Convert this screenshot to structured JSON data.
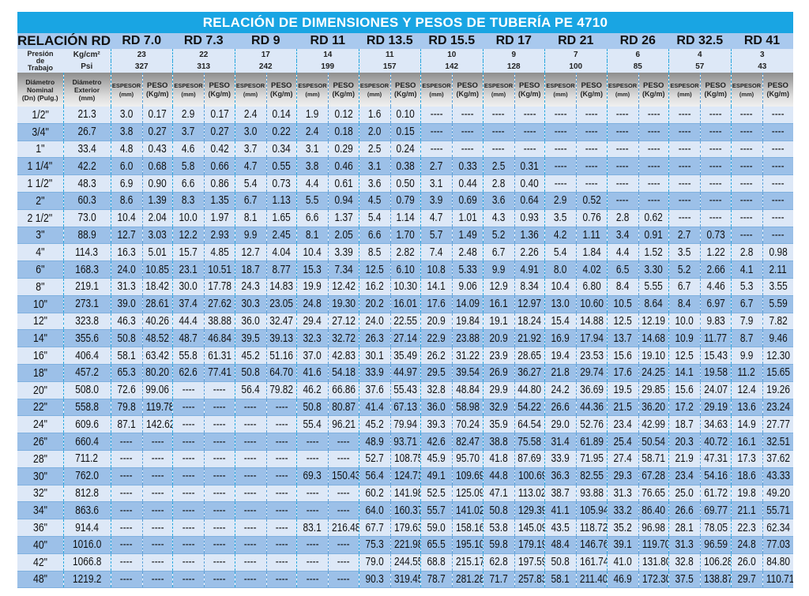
{
  "title": "RELACIÓN DE DIMENSIONES Y PESOS DE TUBERÍA PE 4710",
  "header": {
    "relacion_label": "RELACIÓN RD",
    "pressure_label": "Presión de Trabajo",
    "unit_kg": "Kg/cm²",
    "unit_psi": "Psi",
    "dn_label": "Diámetro Nominal (Dn) (Pulg.)",
    "od_label": "Diámetro Exterior (mm)",
    "espesor_label": "ESPESOR",
    "espesor_unit": "(mm)",
    "peso_label": "PESO",
    "peso_unit": "(Kg/m)"
  },
  "rd_groups": [
    {
      "name": "RD 7.0",
      "kg_cm2": "23",
      "psi": "327"
    },
    {
      "name": "RD 7.3",
      "kg_cm2": "22",
      "psi": "313"
    },
    {
      "name": "RD 9",
      "kg_cm2": "17",
      "psi": "242"
    },
    {
      "name": "RD 11",
      "kg_cm2": "14",
      "psi": "199"
    },
    {
      "name": "RD 13.5",
      "kg_cm2": "11",
      "psi": "157"
    },
    {
      "name": "RD 15.5",
      "kg_cm2": "10",
      "psi": "142"
    },
    {
      "name": "RD 17",
      "kg_cm2": "9",
      "psi": "128"
    },
    {
      "name": "RD 21",
      "kg_cm2": "7",
      "psi": "100"
    },
    {
      "name": "RD 26",
      "kg_cm2": "6",
      "psi": "85"
    },
    {
      "name": "RD 32.5",
      "kg_cm2": "4",
      "psi": "57"
    },
    {
      "name": "RD 41",
      "kg_cm2": "3",
      "psi": "43"
    }
  ],
  "empty_marker": "----",
  "rows": [
    [
      "1/2\"",
      "21.3",
      "3.0",
      "0.17",
      "2.9",
      "0.17",
      "2.4",
      "0.14",
      "1.9",
      "0.12",
      "1.6",
      "0.10",
      null,
      null,
      null,
      null,
      null,
      null,
      null,
      null,
      null,
      null,
      null,
      null
    ],
    [
      "3/4\"",
      "26.7",
      "3.8",
      "0.27",
      "3.7",
      "0.27",
      "3.0",
      "0.22",
      "2.4",
      "0.18",
      "2.0",
      "0.15",
      null,
      null,
      null,
      null,
      null,
      null,
      null,
      null,
      null,
      null,
      null,
      null
    ],
    [
      "1\"",
      "33.4",
      "4.8",
      "0.43",
      "4.6",
      "0.42",
      "3.7",
      "0.34",
      "3.1",
      "0.29",
      "2.5",
      "0.24",
      null,
      null,
      null,
      null,
      null,
      null,
      null,
      null,
      null,
      null,
      null,
      null
    ],
    [
      "1 1/4\"",
      "42.2",
      "6.0",
      "0.68",
      "5.8",
      "0.66",
      "4.7",
      "0.55",
      "3.8",
      "0.46",
      "3.1",
      "0.38",
      "2.7",
      "0.33",
      "2.5",
      "0.31",
      null,
      null,
      null,
      null,
      null,
      null,
      null,
      null
    ],
    [
      "1 1/2\"",
      "48.3",
      "6.9",
      "0.90",
      "6.6",
      "0.86",
      "5.4",
      "0.73",
      "4.4",
      "0.61",
      "3.6",
      "0.50",
      "3.1",
      "0.44",
      "2.8",
      "0.40",
      null,
      null,
      null,
      null,
      null,
      null,
      null,
      null
    ],
    [
      "2\"",
      "60.3",
      "8.6",
      "1.39",
      "8.3",
      "1.35",
      "6.7",
      "1.13",
      "5.5",
      "0.94",
      "4.5",
      "0.79",
      "3.9",
      "0.69",
      "3.6",
      "0.64",
      "2.9",
      "0.52",
      null,
      null,
      null,
      null,
      null,
      null
    ],
    [
      "2 1/2\"",
      "73.0",
      "10.4",
      "2.04",
      "10.0",
      "1.97",
      "8.1",
      "1.65",
      "6.6",
      "1.37",
      "5.4",
      "1.14",
      "4.7",
      "1.01",
      "4.3",
      "0.93",
      "3.5",
      "0.76",
      "2.8",
      "0.62",
      null,
      null,
      null,
      null
    ],
    [
      "3\"",
      "88.9",
      "12.7",
      "3.03",
      "12.2",
      "2.93",
      "9.9",
      "2.45",
      "8.1",
      "2.05",
      "6.6",
      "1.70",
      "5.7",
      "1.49",
      "5.2",
      "1.36",
      "4.2",
      "1.11",
      "3.4",
      "0.91",
      "2.7",
      "0.73",
      null,
      null
    ],
    [
      "4\"",
      "114.3",
      "16.3",
      "5.01",
      "15.7",
      "4.85",
      "12.7",
      "4.04",
      "10.4",
      "3.39",
      "8.5",
      "2.82",
      "7.4",
      "2.48",
      "6.7",
      "2.26",
      "5.4",
      "1.84",
      "4.4",
      "1.52",
      "3.5",
      "1.22",
      "2.8",
      "0.98"
    ],
    [
      "6\"",
      "168.3",
      "24.0",
      "10.85",
      "23.1",
      "10.51",
      "18.7",
      "8.77",
      "15.3",
      "7.34",
      "12.5",
      "6.10",
      "10.8",
      "5.33",
      "9.9",
      "4.91",
      "8.0",
      "4.02",
      "6.5",
      "3.30",
      "5.2",
      "2.66",
      "4.1",
      "2.11"
    ],
    [
      "8\"",
      "219.1",
      "31.3",
      "18.42",
      "30.0",
      "17.78",
      "24.3",
      "14.83",
      "19.9",
      "12.42",
      "16.2",
      "10.30",
      "14.1",
      "9.06",
      "12.9",
      "8.34",
      "10.4",
      "6.80",
      "8.4",
      "5.55",
      "6.7",
      "4.46",
      "5.3",
      "3.55"
    ],
    [
      "10\"",
      "273.1",
      "39.0",
      "28.61",
      "37.4",
      "27.62",
      "30.3",
      "23.05",
      "24.8",
      "19.30",
      "20.2",
      "16.01",
      "17.6",
      "14.09",
      "16.1",
      "12.97",
      "13.0",
      "10.60",
      "10.5",
      "8.64",
      "8.4",
      "6.97",
      "6.7",
      "5.59"
    ],
    [
      "12\"",
      "323.8",
      "46.3",
      "40.26",
      "44.4",
      "38.88",
      "36.0",
      "32.47",
      "29.4",
      "27.12",
      "24.0",
      "22.55",
      "20.9",
      "19.84",
      "19.1",
      "18.24",
      "15.4",
      "14.88",
      "12.5",
      "12.19",
      "10.0",
      "9.83",
      "7.9",
      "7.82"
    ],
    [
      "14\"",
      "355.6",
      "50.8",
      "48.52",
      "48.7",
      "46.84",
      "39.5",
      "39.13",
      "32.3",
      "32.72",
      "26.3",
      "27.14",
      "22.9",
      "23.88",
      "20.9",
      "21.92",
      "16.9",
      "17.94",
      "13.7",
      "14.68",
      "10.9",
      "11.77",
      "8.7",
      "9.46"
    ],
    [
      "16\"",
      "406.4",
      "58.1",
      "63.42",
      "55.8",
      "61.31",
      "45.2",
      "51.16",
      "37.0",
      "42.83",
      "30.1",
      "35.49",
      "26.2",
      "31.22",
      "23.9",
      "28.65",
      "19.4",
      "23.53",
      "15.6",
      "19.10",
      "12.5",
      "15.43",
      "9.9",
      "12.30"
    ],
    [
      "18\"",
      "457.2",
      "65.3",
      "80.20",
      "62.6",
      "77.41",
      "50.8",
      "64.70",
      "41.6",
      "54.18",
      "33.9",
      "44.97",
      "29.5",
      "39.54",
      "26.9",
      "36.27",
      "21.8",
      "29.74",
      "17.6",
      "24.25",
      "14.1",
      "19.58",
      "11.2",
      "15.65"
    ],
    [
      "20\"",
      "508.0",
      "72.6",
      "99.06",
      null,
      null,
      "56.4",
      "79.82",
      "46.2",
      "66.86",
      "37.6",
      "55.43",
      "32.8",
      "48.84",
      "29.9",
      "44.80",
      "24.2",
      "36.69",
      "19.5",
      "29.85",
      "15.6",
      "24.07",
      "12.4",
      "19.26"
    ],
    [
      "22\"",
      "558.8",
      "79.8",
      "119.78",
      null,
      null,
      null,
      null,
      "50.8",
      "80.87",
      "41.4",
      "67.13",
      "36.0",
      "58.98",
      "32.9",
      "54.22",
      "26.6",
      "44.36",
      "21.5",
      "36.20",
      "17.2",
      "29.19",
      "13.6",
      "23.24"
    ],
    [
      "24\"",
      "609.6",
      "87.1",
      "142.62",
      null,
      null,
      null,
      null,
      "55.4",
      "96.21",
      "45.2",
      "79.94",
      "39.3",
      "70.24",
      "35.9",
      "64.54",
      "29.0",
      "52.76",
      "23.4",
      "42.99",
      "18.7",
      "34.63",
      "14.9",
      "27.77"
    ],
    [
      "26\"",
      "660.4",
      null,
      null,
      null,
      null,
      null,
      null,
      null,
      null,
      "48.9",
      "93.71",
      "42.6",
      "82.47",
      "38.8",
      "75.58",
      "31.4",
      "61.89",
      "25.4",
      "50.54",
      "20.3",
      "40.72",
      "16.1",
      "32.51"
    ],
    [
      "28\"",
      "711.2",
      null,
      null,
      null,
      null,
      null,
      null,
      null,
      null,
      "52.7",
      "108.75",
      "45.9",
      "95.70",
      "41.8",
      "87.69",
      "33.9",
      "71.95",
      "27.4",
      "58.71",
      "21.9",
      "47.31",
      "17.3",
      "37.62"
    ],
    [
      "30\"",
      "762.0",
      null,
      null,
      null,
      null,
      null,
      null,
      "69.3",
      "150.43",
      "56.4",
      "124.71",
      "49.1",
      "109.69",
      "44.8",
      "100.69",
      "36.3",
      "82.55",
      "29.3",
      "67.28",
      "23.4",
      "54.16",
      "18.6",
      "43.33"
    ],
    [
      "32\"",
      "812.8",
      null,
      null,
      null,
      null,
      null,
      null,
      null,
      null,
      "60.2",
      "141.98",
      "52.5",
      "125.09",
      "47.1",
      "113.02",
      "38.7",
      "93.88",
      "31.3",
      "76.65",
      "25.0",
      "61.72",
      "19.8",
      "49.20"
    ],
    [
      "34\"",
      "863.6",
      null,
      null,
      null,
      null,
      null,
      null,
      null,
      null,
      "64.0",
      "160.37",
      "55.7",
      "141.02",
      "50.8",
      "129.39",
      "41.1",
      "105.94",
      "33.2",
      "86.40",
      "26.6",
      "69.77",
      "21.1",
      "55.71"
    ],
    [
      "36\"",
      "914.4",
      null,
      null,
      null,
      null,
      null,
      null,
      "83.1",
      "216.48",
      "67.7",
      "179.63",
      "59.0",
      "158.16",
      "53.8",
      "145.09",
      "43.5",
      "118.72",
      "35.2",
      "96.98",
      "28.1",
      "78.05",
      "22.3",
      "62.34"
    ],
    [
      "40\"",
      "1016.0",
      null,
      null,
      null,
      null,
      null,
      null,
      null,
      null,
      "75.3",
      "221.98",
      "65.5",
      "195.10",
      "59.8",
      "179.19",
      "48.4",
      "146.76",
      "39.1",
      "119.70",
      "31.3",
      "96.59",
      "24.8",
      "77.03"
    ],
    [
      "42\"",
      "1066.8",
      null,
      null,
      null,
      null,
      null,
      null,
      null,
      null,
      "79.0",
      "244.55",
      "68.8",
      "215.17",
      "62.8",
      "197.59",
      "50.8",
      "161.74",
      "41.0",
      "131.80",
      "32.8",
      "106.28",
      "26.0",
      "84.80"
    ],
    [
      "48\"",
      "1219.2",
      null,
      null,
      null,
      null,
      null,
      null,
      null,
      null,
      "90.3",
      "319.45",
      "78.7",
      "281.28",
      "71.7",
      "257.83",
      "58.1",
      "211.40",
      "46.9",
      "172.30",
      "37.5",
      "138.87",
      "29.7",
      "110.71"
    ]
  ],
  "colors": {
    "title_bg": "#19a5e3",
    "rd_header_bg": "#a9c9ee",
    "row_light": "#dde8f7",
    "row_dark": "#9cc0e8",
    "divider": "#29a7df"
  }
}
